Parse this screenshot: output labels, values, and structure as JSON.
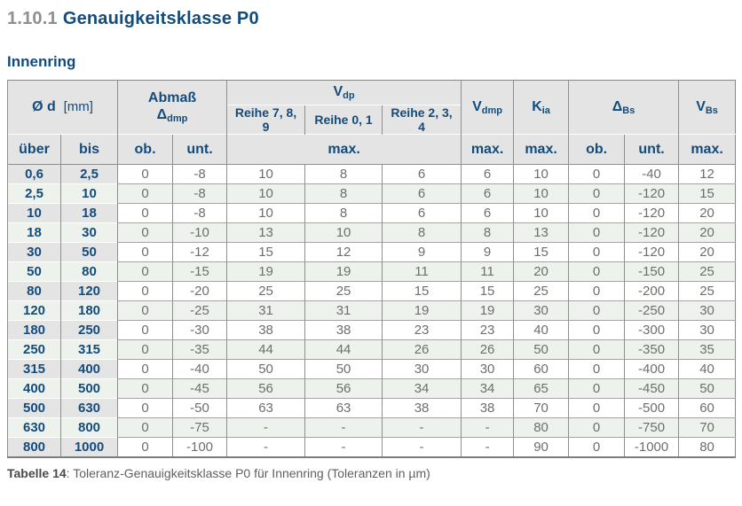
{
  "page": {
    "heading_number": "1.10.1",
    "heading_title": "Genauigkeitsklasse P0",
    "section_title": "Innenring"
  },
  "colors": {
    "accent_blue": "#134b7c",
    "header_gray": "#e4e4e4",
    "row_green": "#edf3ec",
    "data_text_gray": "#6e6e6e"
  },
  "table": {
    "header": {
      "d_label": "Ø d",
      "d_unit": "[mm]",
      "abmass_label": "Abmaß",
      "abmass_sym": "Δ",
      "abmass_sub": "dmp",
      "vdp_sym": "V",
      "vdp_sub": "dp",
      "reihe_789": "Reihe 7, 8, 9",
      "reihe_01": "Reihe 0, 1",
      "reihe_234": "Reihe 2, 3, 4",
      "vdmp_sym": "V",
      "vdmp_sub": "dmp",
      "kia_sym": "K",
      "kia_sub": "ia",
      "dbs_sym": "Δ",
      "dbs_sub": "Bs",
      "vbs_sym": "V",
      "vbs_sub": "Bs",
      "sub_ueber": "über",
      "sub_bis": "bis",
      "sub_ob": "ob.",
      "sub_unt": "unt.",
      "sub_max": "max."
    },
    "rows": [
      [
        "0,6",
        "2,5",
        "0",
        "-8",
        "10",
        "8",
        "6",
        "6",
        "10",
        "0",
        "-40",
        "12"
      ],
      [
        "2,5",
        "10",
        "0",
        "-8",
        "10",
        "8",
        "6",
        "6",
        "10",
        "0",
        "-120",
        "15"
      ],
      [
        "10",
        "18",
        "0",
        "-8",
        "10",
        "8",
        "6",
        "6",
        "10",
        "0",
        "-120",
        "20"
      ],
      [
        "18",
        "30",
        "0",
        "-10",
        "13",
        "10",
        "8",
        "8",
        "13",
        "0",
        "-120",
        "20"
      ],
      [
        "30",
        "50",
        "0",
        "-12",
        "15",
        "12",
        "9",
        "9",
        "15",
        "0",
        "-120",
        "20"
      ],
      [
        "50",
        "80",
        "0",
        "-15",
        "19",
        "19",
        "11",
        "11",
        "20",
        "0",
        "-150",
        "25"
      ],
      [
        "80",
        "120",
        "0",
        "-20",
        "25",
        "25",
        "15",
        "15",
        "25",
        "0",
        "-200",
        "25"
      ],
      [
        "120",
        "180",
        "0",
        "-25",
        "31",
        "31",
        "19",
        "19",
        "30",
        "0",
        "-250",
        "30"
      ],
      [
        "180",
        "250",
        "0",
        "-30",
        "38",
        "38",
        "23",
        "23",
        "40",
        "0",
        "-300",
        "30"
      ],
      [
        "250",
        "315",
        "0",
        "-35",
        "44",
        "44",
        "26",
        "26",
        "50",
        "0",
        "-350",
        "35"
      ],
      [
        "315",
        "400",
        "0",
        "-40",
        "50",
        "50",
        "30",
        "30",
        "60",
        "0",
        "-400",
        "40"
      ],
      [
        "400",
        "500",
        "0",
        "-45",
        "56",
        "56",
        "34",
        "34",
        "65",
        "0",
        "-450",
        "50"
      ],
      [
        "500",
        "630",
        "0",
        "-50",
        "63",
        "63",
        "38",
        "38",
        "70",
        "0",
        "-500",
        "60"
      ],
      [
        "630",
        "800",
        "0",
        "-75",
        "-",
        "-",
        "-",
        "-",
        "80",
        "0",
        "-750",
        "70"
      ],
      [
        "800",
        "1000",
        "0",
        "-100",
        "-",
        "-",
        "-",
        "-",
        "90",
        "0",
        "-1000",
        "80"
      ]
    ],
    "caption_label": "Tabelle 14",
    "caption_text": ": Toleranz-Genauigkeitsklasse P0 für Innenring (Toleranzen in µm)"
  }
}
